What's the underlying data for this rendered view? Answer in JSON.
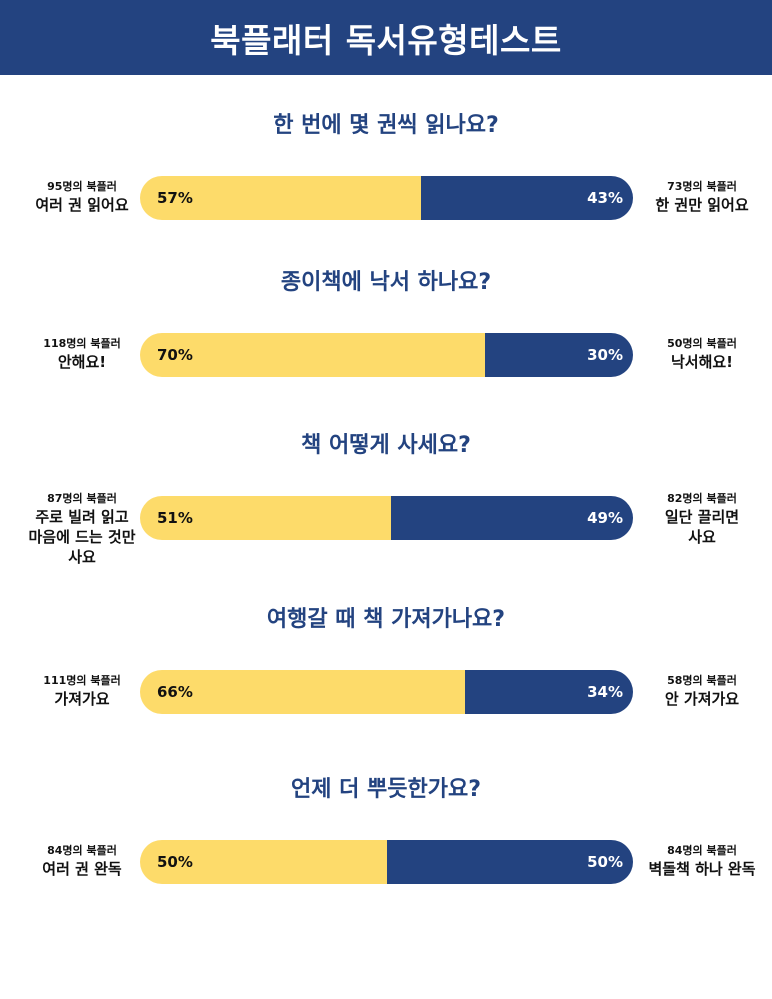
{
  "header": {
    "title": "북플래터 독서유형테스트"
  },
  "colors": {
    "left": "#fddb6a",
    "right": "#234380",
    "header": "#234380"
  },
  "chart_data": [
    {
      "type": "bar",
      "title": "한 번에 몇 권씩 읽나요?",
      "series": [
        {
          "label": "여러 권 읽어요",
          "count": "95명의 북플러",
          "value": 57,
          "value_label": "57%"
        },
        {
          "label": "한 권만 읽어요",
          "count": "73명의 북플러",
          "value": 43,
          "value_label": "43%"
        }
      ]
    },
    {
      "type": "bar",
      "title": "종이책에 낙서 하나요?",
      "series": [
        {
          "label": "안해요!",
          "count": "118명의 북플러",
          "value": 70,
          "value_label": "70%"
        },
        {
          "label": "낙서해요!",
          "count": "50명의 북플러",
          "value": 30,
          "value_label": "30%"
        }
      ]
    },
    {
      "type": "bar",
      "title": "책 어떻게 사세요?",
      "series": [
        {
          "label": "주로 빌려 읽고\n마음에 드는 것만\n사요",
          "count": "87명의 북플러",
          "value": 51,
          "value_label": "51%"
        },
        {
          "label": "일단 끌리면\n사요",
          "count": "82명의 북플러",
          "value": 49,
          "value_label": "49%"
        }
      ]
    },
    {
      "type": "bar",
      "title": "여행갈 때 책 가져가나요?",
      "series": [
        {
          "label": "가져가요",
          "count": "111명의 북플러",
          "value": 66,
          "value_label": "66%"
        },
        {
          "label": "안 가져가요",
          "count": "58명의 북플러",
          "value": 34,
          "value_label": "34%"
        }
      ]
    },
    {
      "type": "bar",
      "title": "언제 더 뿌듯한가요?",
      "series": [
        {
          "label": "여러 권 완독",
          "count": "84명의 북플러",
          "value": 50,
          "value_label": "50%"
        },
        {
          "label": "벽돌책 하나 완독",
          "count": "84명의 북플러",
          "value": 50,
          "value_label": "50%"
        }
      ]
    }
  ]
}
